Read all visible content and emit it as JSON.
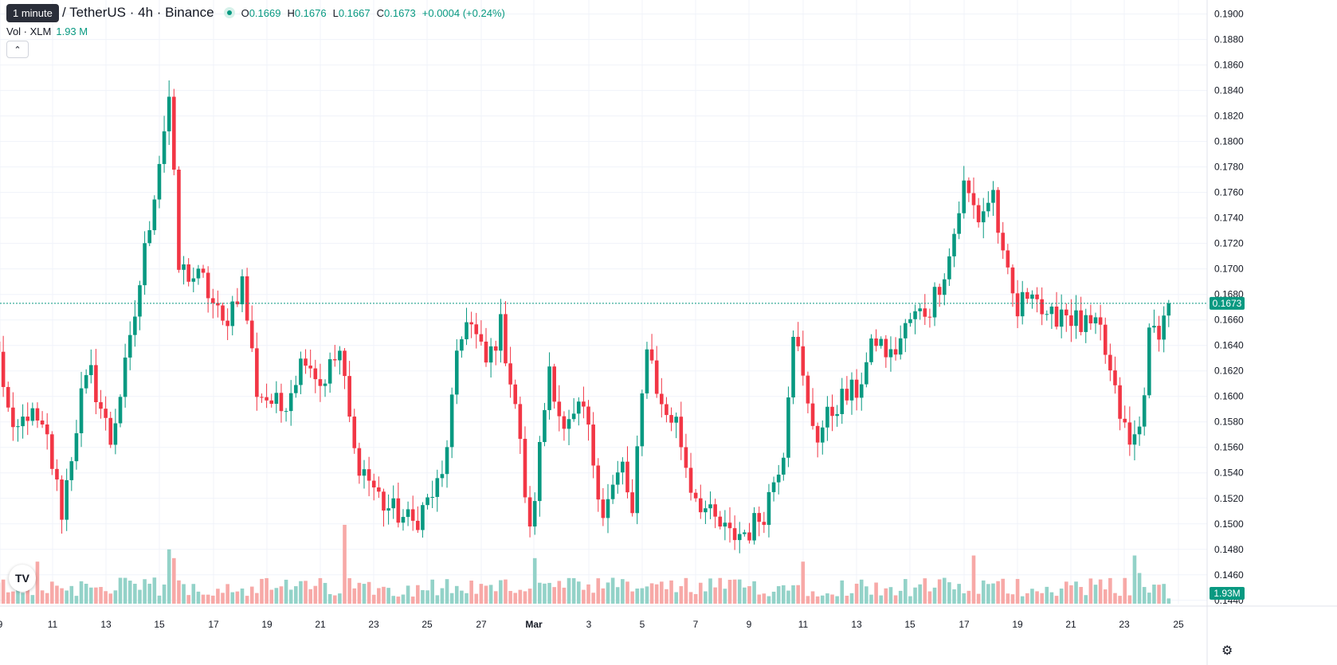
{
  "tooltip": "1 minute",
  "legend": {
    "symbol": "/ TetherUS · 4h · Binance",
    "open_key": "O",
    "open": "0.1669",
    "high_key": "H",
    "high": "0.1676",
    "low_key": "L",
    "low": "0.1667",
    "close_key": "C",
    "close": "0.1673",
    "change": "+0.0004 (+0.24%)"
  },
  "volume_legend": {
    "label": "Vol · XLM",
    "value": "1.93 M"
  },
  "price_badge": "0.1673",
  "volume_badge": "1.93M",
  "colors": {
    "up": "#089981",
    "down": "#f23645",
    "up_volume": "#93d2c8",
    "down_volume": "#f7a9a7",
    "grid": "#f0f3fa"
  },
  "icons": {
    "collapse": "chevron-up-icon",
    "logo": "tradingview-logo-icon",
    "settings": "gear-icon"
  },
  "chart_data": {
    "type": "candlestick",
    "interval": "4h",
    "ylim": [
      0.1408,
      0.1906
    ],
    "y_ticks": [
      "0.1900",
      "0.1880",
      "0.1860",
      "0.1840",
      "0.1820",
      "0.1800",
      "0.1780",
      "0.1760",
      "0.1740",
      "0.1720",
      "0.1700",
      "0.1680",
      "0.1660",
      "0.1640",
      "0.1620",
      "0.1600",
      "0.1580",
      "0.1560",
      "0.1540",
      "0.1520",
      "0.1500",
      "0.1480",
      "0.1460",
      "0.1440"
    ],
    "x_ticks": [
      "9",
      "11",
      "13",
      "15",
      "17",
      "19",
      "21",
      "23",
      "25",
      "27",
      "Mar",
      "3",
      "5",
      "7",
      "9",
      "11",
      "13",
      "15",
      "17",
      "19",
      "21",
      "23",
      "25"
    ],
    "last_price": 0.1673,
    "anchors": [
      {
        "i": 0,
        "price": 0.1635
      },
      {
        "i": 3,
        "price": 0.1565
      },
      {
        "i": 6,
        "price": 0.1588
      },
      {
        "i": 10,
        "price": 0.1565
      },
      {
        "i": 13,
        "price": 0.151
      },
      {
        "i": 17,
        "price": 0.16
      },
      {
        "i": 19,
        "price": 0.1617
      },
      {
        "i": 23,
        "price": 0.1565
      },
      {
        "i": 27,
        "price": 0.164
      },
      {
        "i": 32,
        "price": 0.1762
      },
      {
        "i": 35,
        "price": 0.1835
      },
      {
        "i": 37,
        "price": 0.17
      },
      {
        "i": 42,
        "price": 0.169
      },
      {
        "i": 46,
        "price": 0.1655
      },
      {
        "i": 50,
        "price": 0.169
      },
      {
        "i": 53,
        "price": 0.1605
      },
      {
        "i": 58,
        "price": 0.159
      },
      {
        "i": 63,
        "price": 0.1635
      },
      {
        "i": 66,
        "price": 0.161
      },
      {
        "i": 70,
        "price": 0.1635
      },
      {
        "i": 73,
        "price": 0.1555
      },
      {
        "i": 79,
        "price": 0.1515
      },
      {
        "i": 85,
        "price": 0.15
      },
      {
        "i": 91,
        "price": 0.1535
      },
      {
        "i": 94,
        "price": 0.1625
      },
      {
        "i": 96,
        "price": 0.1665
      },
      {
        "i": 100,
        "price": 0.1625
      },
      {
        "i": 103,
        "price": 0.1655
      },
      {
        "i": 106,
        "price": 0.1595
      },
      {
        "i": 109,
        "price": 0.149
      },
      {
        "i": 113,
        "price": 0.1625
      },
      {
        "i": 116,
        "price": 0.157
      },
      {
        "i": 120,
        "price": 0.159
      },
      {
        "i": 124,
        "price": 0.151
      },
      {
        "i": 128,
        "price": 0.1545
      },
      {
        "i": 130,
        "price": 0.1505
      },
      {
        "i": 133,
        "price": 0.1645
      },
      {
        "i": 136,
        "price": 0.159
      },
      {
        "i": 139,
        "price": 0.158
      },
      {
        "i": 142,
        "price": 0.153
      },
      {
        "i": 146,
        "price": 0.1505
      },
      {
        "i": 150,
        "price": 0.149
      },
      {
        "i": 154,
        "price": 0.1495
      },
      {
        "i": 157,
        "price": 0.151
      },
      {
        "i": 161,
        "price": 0.156
      },
      {
        "i": 163,
        "price": 0.1655
      },
      {
        "i": 166,
        "price": 0.159
      },
      {
        "i": 168,
        "price": 0.157
      },
      {
        "i": 172,
        "price": 0.1595
      },
      {
        "i": 176,
        "price": 0.1605
      },
      {
        "i": 180,
        "price": 0.1645
      },
      {
        "i": 183,
        "price": 0.163
      },
      {
        "i": 187,
        "price": 0.166
      },
      {
        "i": 191,
        "price": 0.167
      },
      {
        "i": 195,
        "price": 0.171
      },
      {
        "i": 198,
        "price": 0.1765
      },
      {
        "i": 201,
        "price": 0.174
      },
      {
        "i": 204,
        "price": 0.176
      },
      {
        "i": 206,
        "price": 0.1705
      },
      {
        "i": 209,
        "price": 0.1665
      },
      {
        "i": 212,
        "price": 0.169
      },
      {
        "i": 215,
        "price": 0.1655
      },
      {
        "i": 218,
        "price": 0.167
      },
      {
        "i": 222,
        "price": 0.1655
      },
      {
        "i": 226,
        "price": 0.165
      },
      {
        "i": 229,
        "price": 0.16
      },
      {
        "i": 232,
        "price": 0.156
      },
      {
        "i": 234,
        "price": 0.1575
      },
      {
        "i": 236,
        "price": 0.1645
      },
      {
        "i": 239,
        "price": 0.166
      },
      {
        "i": 240,
        "price": 0.1673
      }
    ],
    "volume_spikes": [
      {
        "i": 8,
        "v": 0.48
      },
      {
        "i": 35,
        "v": 0.62
      },
      {
        "i": 36,
        "v": 0.52
      },
      {
        "i": 71,
        "v": 0.9
      },
      {
        "i": 110,
        "v": 0.52
      },
      {
        "i": 165,
        "v": 0.48
      },
      {
        "i": 200,
        "v": 0.55
      },
      {
        "i": 233,
        "v": 0.55
      },
      {
        "i": 234,
        "v": 0.35
      }
    ],
    "volume_last": 0.06
  }
}
